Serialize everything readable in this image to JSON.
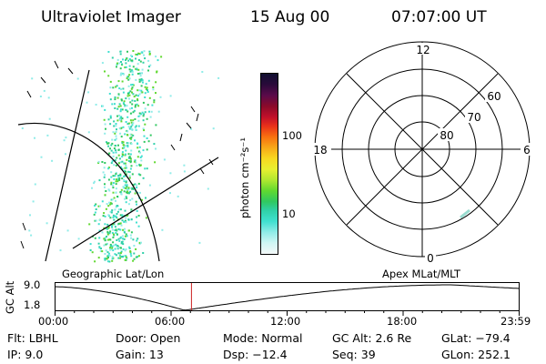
{
  "header": {
    "title": "Ultraviolet Imager",
    "date": "15 Aug 00",
    "time": "07:07:00 UT"
  },
  "colorbar": {
    "unit_label": "photon cm⁻²s⁻¹",
    "ticks": [
      "100",
      "10"
    ],
    "colors": [
      "#101030",
      "#2a0a3a",
      "#5a0a4a",
      "#8a0a2a",
      "#c0102a",
      "#e8301a",
      "#f87010",
      "#f8a818",
      "#f8d820",
      "#e8f030",
      "#b0e830",
      "#60d830",
      "#30c860",
      "#30d0a8",
      "#40e0d0",
      "#90ece8",
      "#d0f6f4",
      "#f4f8f8"
    ]
  },
  "polar": {
    "mlt_labels": {
      "top": "12",
      "left": "18",
      "right": "6",
      "bottom": "0"
    },
    "lat_labels": [
      "60",
      "70",
      "80"
    ]
  },
  "timeline": {
    "y_axis_label": "GC Alt",
    "y_ticks": [
      "9.0",
      "1.8"
    ],
    "left_label": "Geographic Lat/Lon",
    "right_label": "Apex MLat/MLT",
    "x_ticks": [
      "00:00",
      "06:00",
      "12:00",
      "18:00",
      "23:59"
    ],
    "current_time_fraction": 0.295,
    "marker_color": "#cc2222"
  },
  "info": {
    "filter": "Flt: LBHL",
    "ip": "IP:  9.0",
    "door": "Door: Open",
    "gain": "Gain: 13",
    "mode": "Mode: Normal",
    "dsp": "Dsp:  −12.4",
    "gc_alt": "GC Alt: 2.6 Re",
    "seq": "Seq: 39",
    "glat": "GLat: −79.4",
    "glon": "GLon: 252.1"
  }
}
